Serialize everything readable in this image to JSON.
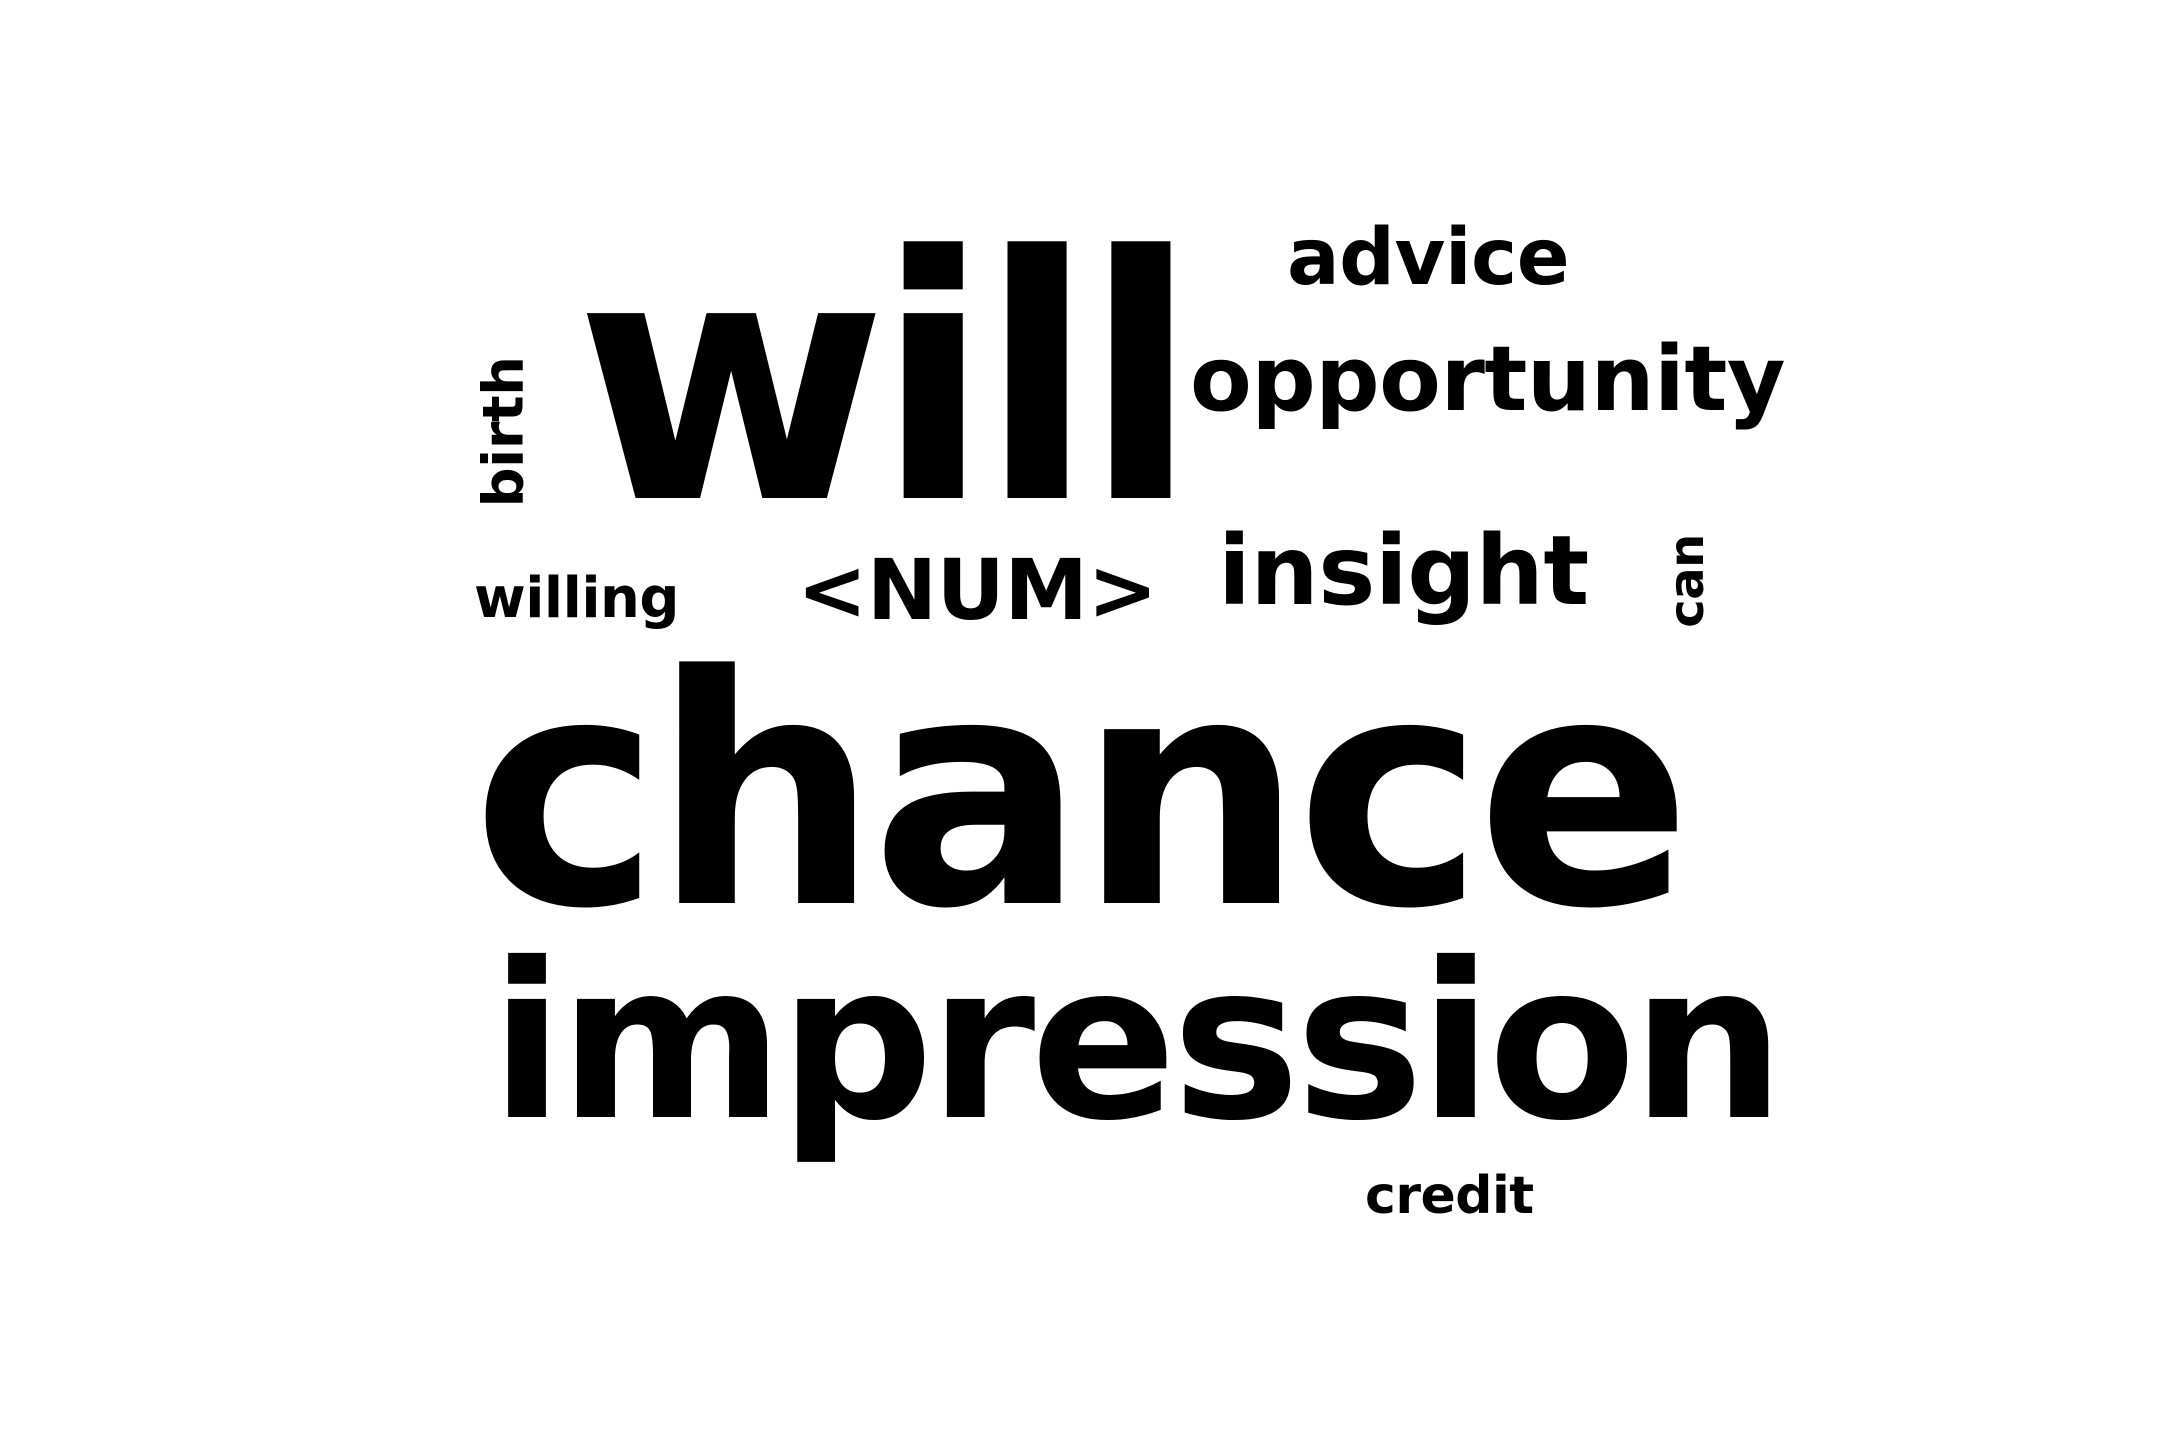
{
  "word_cloud": {
    "background_color": "#ffffff",
    "text_color": "#000000",
    "words": {
      "will": "will",
      "advice": "advice",
      "opportunity": "opportunity",
      "birth": "birth",
      "willing": "willing",
      "num": "<NUM>",
      "insight": "insight",
      "can": "can",
      "chance": "chance",
      "impression": "impression",
      "credit": "credit"
    }
  }
}
